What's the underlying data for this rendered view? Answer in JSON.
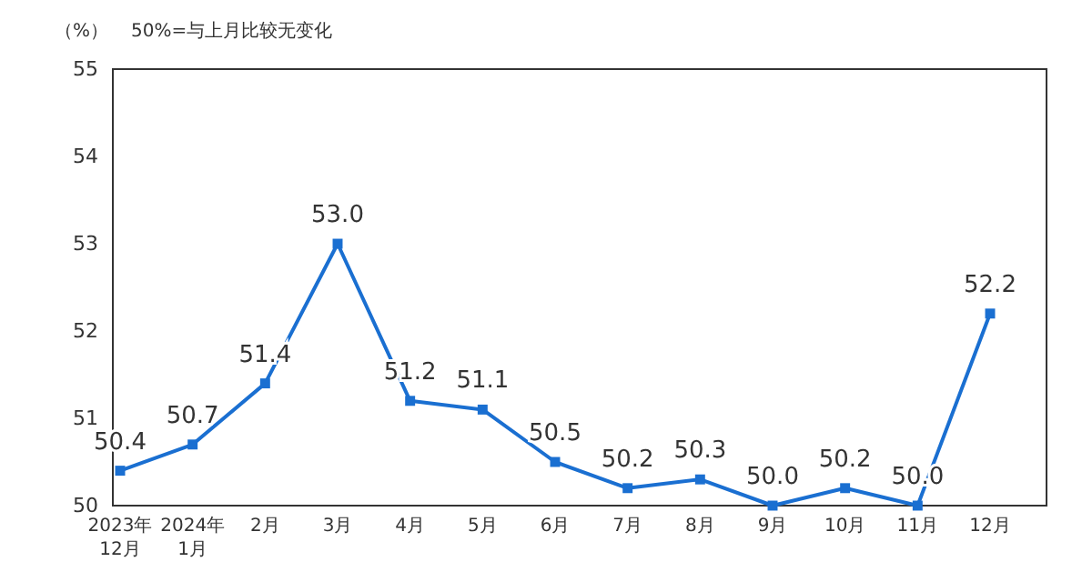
{
  "chart_data": {
    "type": "line",
    "ylabel": "（%）",
    "annotations": [
      "50%=与上月比较无变化"
    ],
    "categories": [
      "2023年\n12月",
      "2024年\n1月",
      "2月",
      "3月",
      "4月",
      "5月",
      "6月",
      "7月",
      "8月",
      "9月",
      "10月",
      "11月",
      "12月"
    ],
    "series": [
      {
        "color": "#1a6fd1",
        "values": [
          50.4,
          50.7,
          51.4,
          53.0,
          51.2,
          51.1,
          50.5,
          50.2,
          50.3,
          50.0,
          50.2,
          50.0,
          52.2
        ],
        "value_labels": [
          "50.4",
          "50.7",
          "51.4",
          "53.0",
          "51.2",
          "51.1",
          "50.5",
          "50.2",
          "50.3",
          "50.0",
          "50.2",
          "50.0",
          "52.2"
        ]
      }
    ],
    "ylim": [
      50,
      55
    ],
    "yticks": [
      50,
      51,
      52,
      53,
      54,
      55
    ],
    "marker": "square",
    "line_style": "solid"
  }
}
